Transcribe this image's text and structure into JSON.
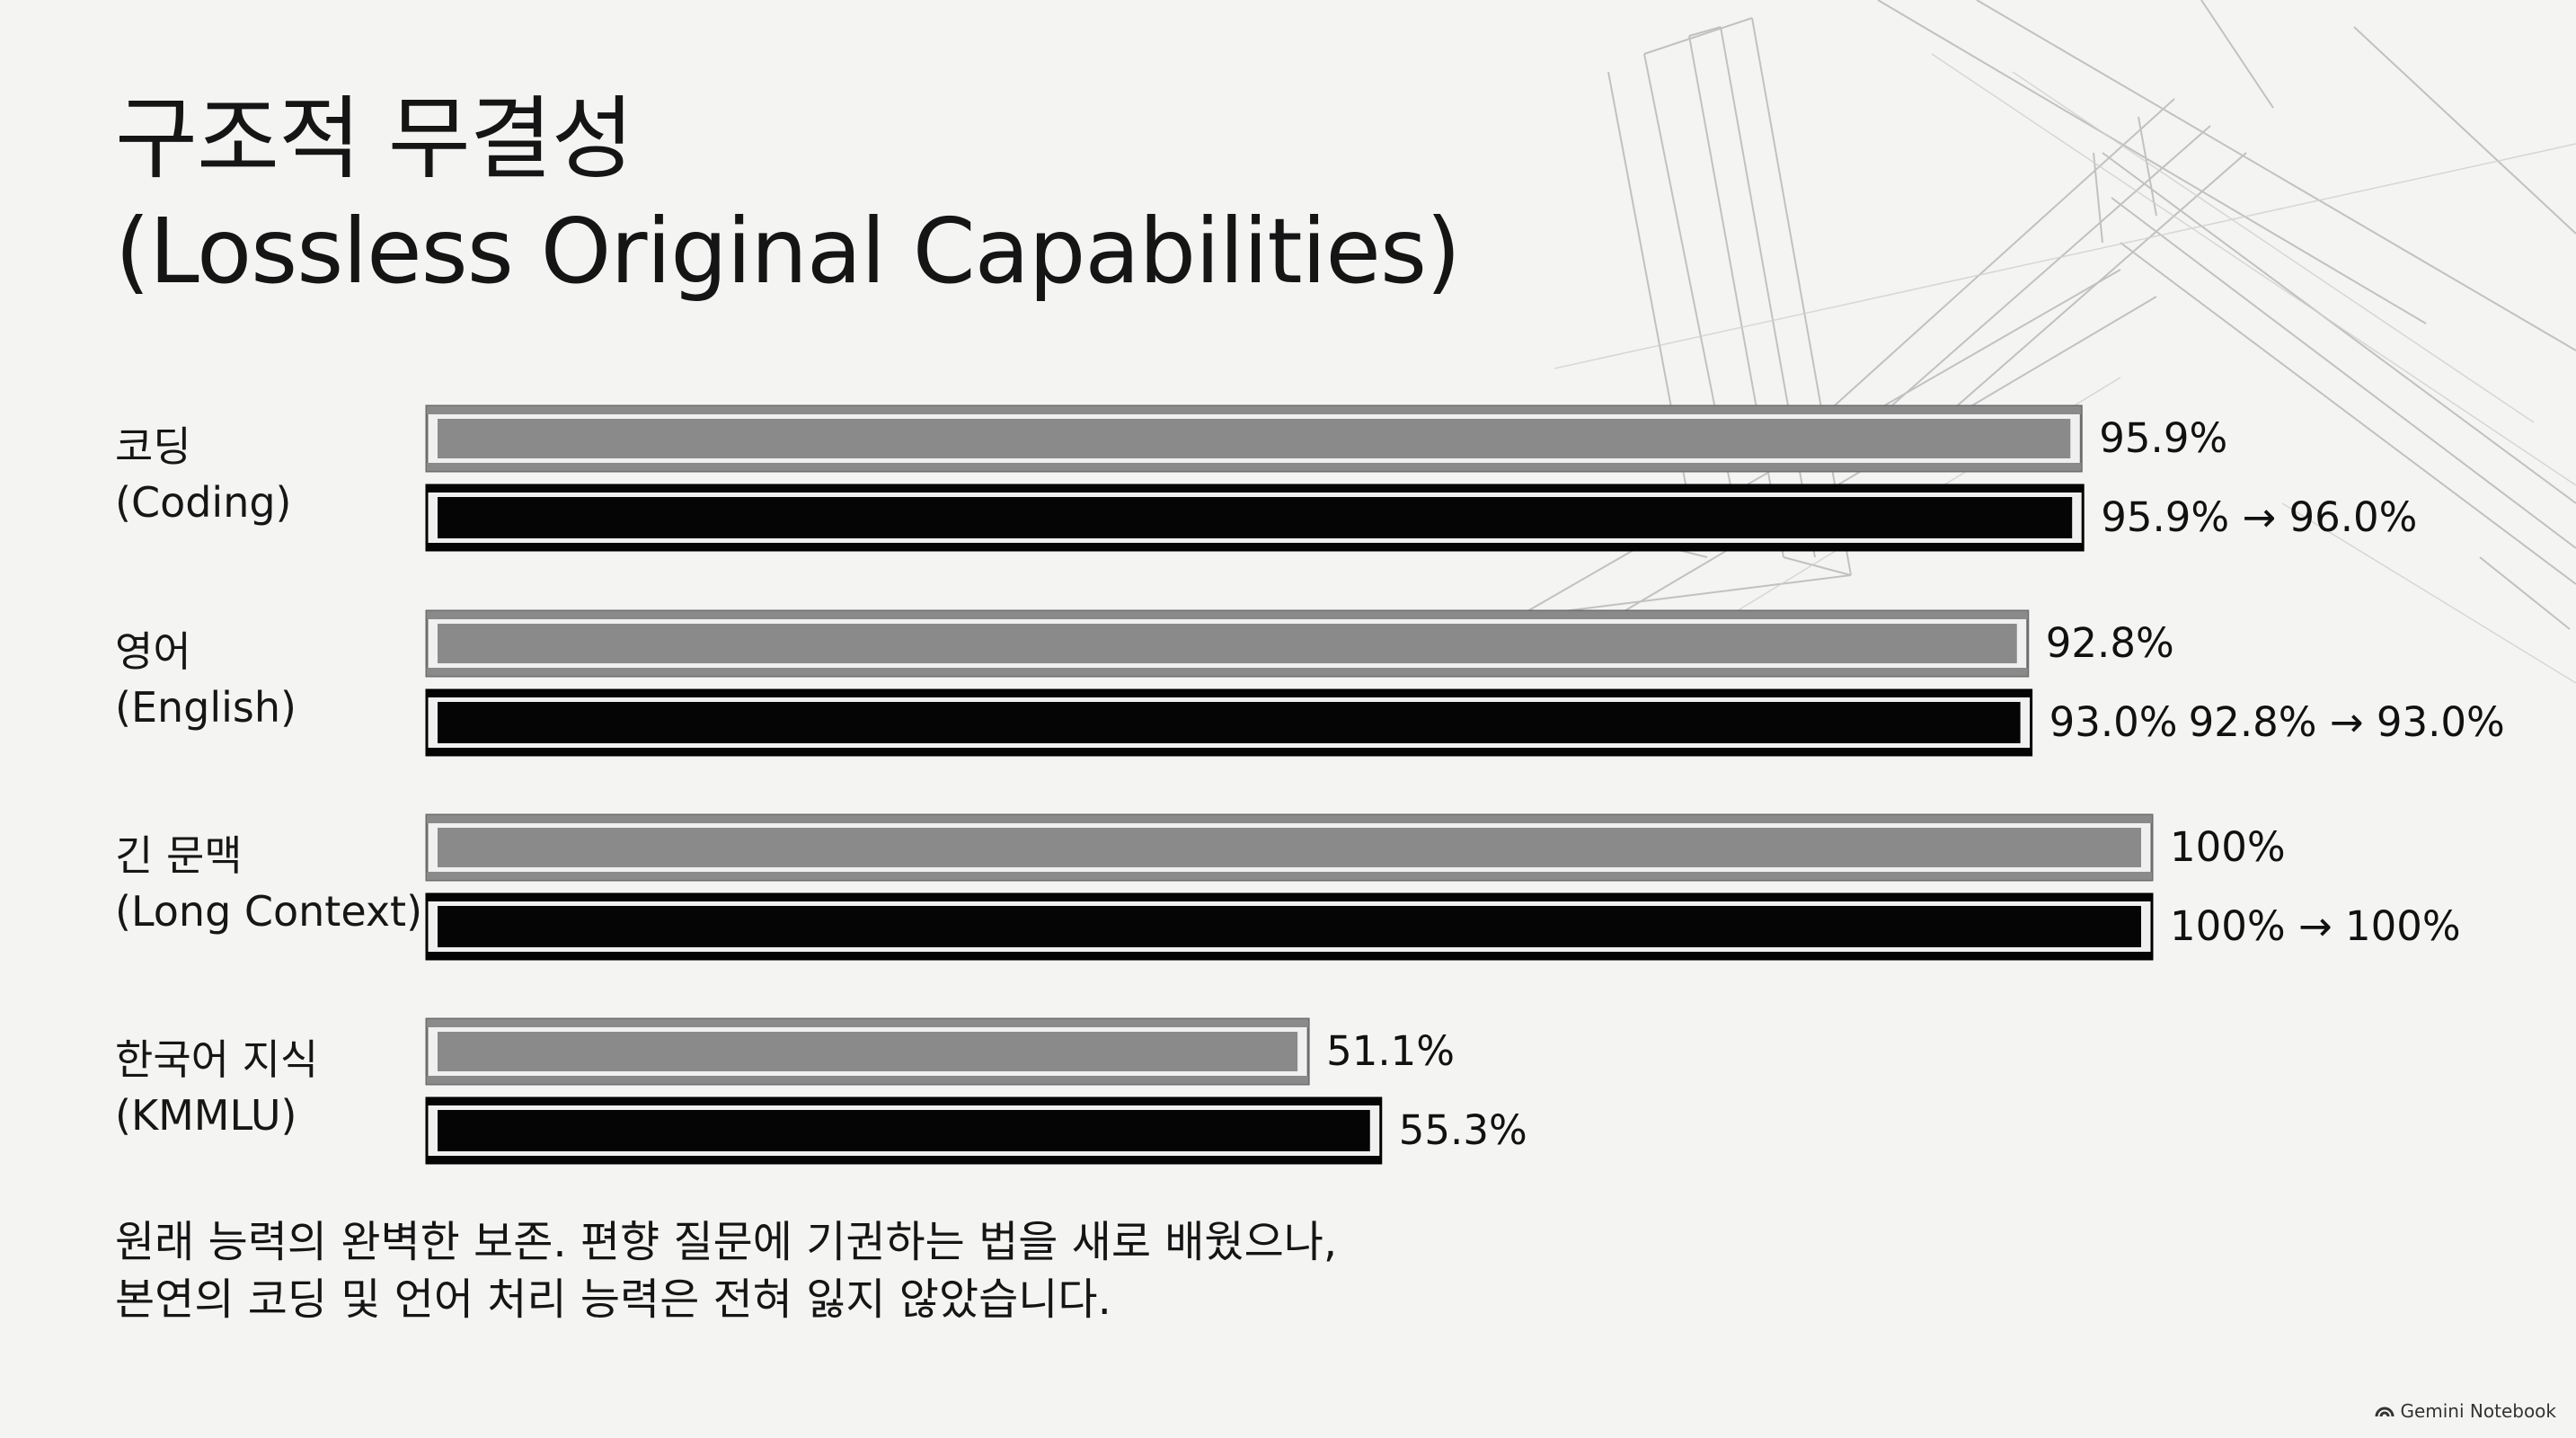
{
  "title": {
    "line1": "구조적 무결성",
    "line2": "(Lossless Original Capabilities)"
  },
  "caption": {
    "line1": "원래 능력의 완벽한 보존. 편향 질문에 기권하는 법을 새로 배웠으나,",
    "line2": "본연의 코딩 및 언어 처리 능력은 전혀 잃지 않았습니다."
  },
  "watermark": {
    "text": "Gemini Notebook",
    "icon": "gemini-notebook-icon"
  },
  "colors": {
    "original_bar": "#8a8a8a",
    "tuned_bar": "#050505",
    "background": "#f4f4f3"
  },
  "chart_data": {
    "type": "bar",
    "orientation": "horizontal",
    "xlim": [
      0,
      100
    ],
    "categories": [
      {
        "label": "코딩",
        "sublabel": "(Coding)",
        "comparison": "95.9% → 96.0%"
      },
      {
        "label": "영어",
        "sublabel": "(English)",
        "comparison": "92.8% → 93.0%"
      },
      {
        "label": "긴 문맥",
        "sublabel": "(Long Context)",
        "comparison": "100% → 100%"
      },
      {
        "label": "한국어 지식",
        "sublabel": "(KMMLU)",
        "comparison": ""
      }
    ],
    "series": [
      {
        "style": "gray",
        "values": [
          95.9,
          92.8,
          100,
          51.1
        ],
        "labels": [
          "95.9%",
          "92.8%",
          "100%",
          "51.1%"
        ]
      },
      {
        "style": "black",
        "values": [
          96.0,
          93.0,
          100,
          55.3
        ],
        "labels": [
          "",
          "93.0%",
          "",
          "55.3%"
        ]
      }
    ]
  }
}
